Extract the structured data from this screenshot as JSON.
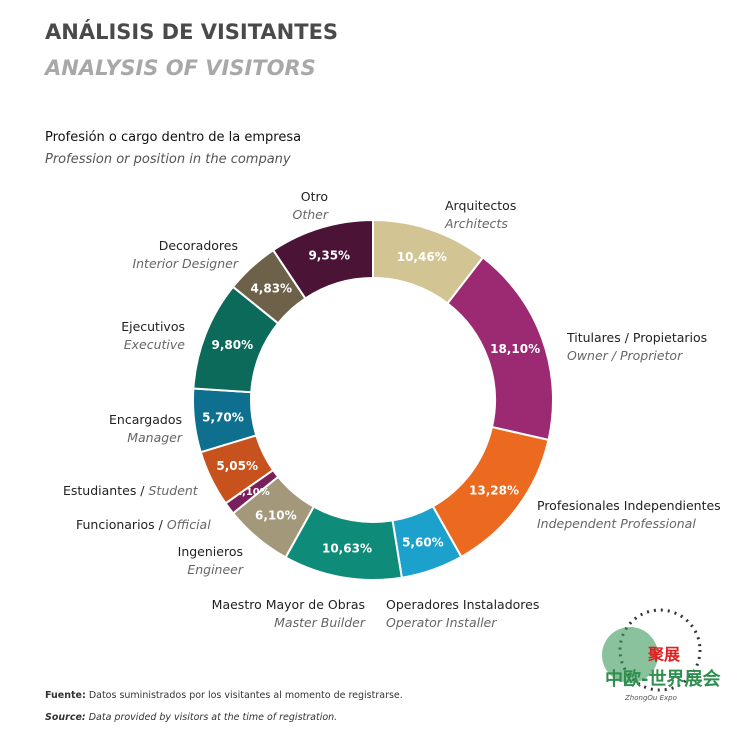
{
  "title_es": "ANÁLISIS DE VISITANTES",
  "title_en": "ANALYSIS OF VISITORS",
  "chart_data": {
    "type": "pie",
    "variant": "donut",
    "title": "Profesión o cargo dentro de la empresa",
    "subtitle": "Profession or position in the company",
    "slices": [
      {
        "es": "Arquitectos",
        "en": "Architects",
        "value": 10.46,
        "label": "10,46%",
        "color": "#d3c493"
      },
      {
        "es": "Titulares / Propietarios",
        "en": "Owner / Proprietor",
        "value": 18.1,
        "label": "18,10%",
        "color": "#9c2a73"
      },
      {
        "es": "Profesionales Independientes",
        "en": "Independent Professional",
        "value": 13.28,
        "label": "13,28%",
        "color": "#ec6a1f"
      },
      {
        "es": "Operadores Instaladores",
        "en": "Operator Installer",
        "value": 5.6,
        "label": "5,60%",
        "color": "#1ca0cc"
      },
      {
        "es": "Maestro Mayor de Obras",
        "en": "Master Builder",
        "value": 10.63,
        "label": "10,63%",
        "color": "#0f8c79"
      },
      {
        "es": "Ingenieros",
        "en": "Engineer",
        "value": 6.1,
        "label": "6,10%",
        "color": "#a4987a"
      },
      {
        "es": "Funcionarios /",
        "en": "Official",
        "value": 1.1,
        "label": "1,10%",
        "color": "#7b1f5b"
      },
      {
        "es": "Estudiantes /",
        "en": "Student",
        "value": 5.05,
        "label": "5,05%",
        "color": "#c8521d"
      },
      {
        "es": "Encargados",
        "en": "Manager",
        "value": 5.7,
        "label": "5,70%",
        "color": "#0f6f8f"
      },
      {
        "es": "Ejecutivos",
        "en": "Executive",
        "value": 9.8,
        "label": "9,80%",
        "color": "#0c6a5a"
      },
      {
        "es": "Decoradores",
        "en": "Interior Designer",
        "value": 4.83,
        "label": "4,83%",
        "color": "#6d6149"
      },
      {
        "es": "Otro",
        "en": "Other",
        "value": 9.35,
        "label": "9,35%",
        "color": "#4b1437"
      }
    ]
  },
  "footer": {
    "es_bold": "Fuente:",
    "es_text": "Datos suministrados por los visitantes al momento de registrarse.",
    "en_bold": "Source:",
    "en_text": "Data provided by visitors at the time of registration."
  },
  "logo_text": "聚展 中欧-世界展会 ZhongOu Expo"
}
